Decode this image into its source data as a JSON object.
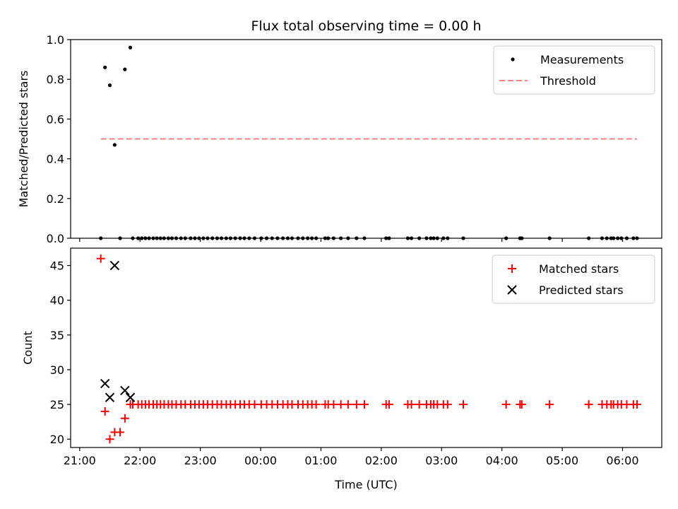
{
  "chart_data": [
    {
      "type": "scatter",
      "title": "Flux total observing time = 0.00 h",
      "xlabel": "",
      "ylabel": "Matched/Predicted stars",
      "ylim": [
        0.0,
        1.0
      ],
      "xlim": [
        -0.15,
        9.65
      ],
      "yticks": [
        0.0,
        0.2,
        0.4,
        0.6,
        0.8,
        1.0
      ],
      "ytick_labels": [
        "0.0",
        "0.2",
        "0.4",
        "0.6",
        "0.8",
        "1.0"
      ],
      "legend": {
        "placement": "top-right",
        "entries": [
          "Measurements",
          "Threshold"
        ]
      },
      "series": [
        {
          "name": "Measurements",
          "kind": "points",
          "color": "#000000",
          "x": [
            0.35,
            0.42,
            0.5,
            0.58,
            0.67,
            0.75,
            0.84,
            0.88,
            0.97,
            1.03,
            1.09,
            1.15,
            1.22,
            1.28,
            1.34,
            1.4,
            1.47,
            1.53,
            1.6,
            1.68,
            1.75,
            1.84,
            1.91,
            1.98,
            2.05,
            2.12,
            2.2,
            2.28,
            2.35,
            2.43,
            2.5,
            2.58,
            2.66,
            2.73,
            2.81,
            2.9,
            3.01,
            3.1,
            3.19,
            3.28,
            3.37,
            3.45,
            3.52,
            3.62,
            3.7,
            3.78,
            3.85,
            3.92,
            4.07,
            4.12,
            4.21,
            4.33,
            4.45,
            4.59,
            4.72,
            5.08,
            5.13,
            5.44,
            5.5,
            5.63,
            5.75,
            5.82,
            5.87,
            5.93,
            6.03,
            6.1,
            6.36,
            7.07,
            7.3,
            7.33,
            7.79,
            8.44,
            8.66,
            8.74,
            8.81,
            8.85,
            8.92,
            8.98,
            9.07,
            9.18,
            9.24
          ],
          "y": [
            0.0,
            0.86,
            0.77,
            0.47,
            0.0,
            0.85,
            0.96,
            0.0,
            0.0,
            0.0,
            0.0,
            0.0,
            0.0,
            0.0,
            0.0,
            0.0,
            0.0,
            0.0,
            0.0,
            0.0,
            0.0,
            0.0,
            0.0,
            0.0,
            0.0,
            0.0,
            0.0,
            0.0,
            0.0,
            0.0,
            0.0,
            0.0,
            0.0,
            0.0,
            0.0,
            0.0,
            0.0,
            0.0,
            0.0,
            0.0,
            0.0,
            0.0,
            0.0,
            0.0,
            0.0,
            0.0,
            0.0,
            0.0,
            0.0,
            0.0,
            0.0,
            0.0,
            0.0,
            0.0,
            0.0,
            0.0,
            0.0,
            0.0,
            0.0,
            0.0,
            0.0,
            0.0,
            0.0,
            0.0,
            0.0,
            0.0,
            0.0,
            0.0,
            0.0,
            0.0,
            0.0,
            0.0,
            0.0,
            0.0,
            0.0,
            0.0,
            0.0,
            0.0,
            0.0,
            0.0,
            0.0
          ]
        },
        {
          "name": "Threshold",
          "kind": "dashed-line",
          "color": "#ff7f7f",
          "x": [
            0.35,
            9.24
          ],
          "y": [
            0.5,
            0.5
          ]
        }
      ]
    },
    {
      "type": "scatter",
      "title": "",
      "xlabel": "Time (UTC)",
      "ylabel": "Count",
      "ylim": [
        18.8,
        47.5
      ],
      "xlim": [
        -0.15,
        9.65
      ],
      "yticks": [
        20,
        25,
        30,
        35,
        40,
        45
      ],
      "ytick_labels": [
        "20",
        "25",
        "30",
        "35",
        "40",
        "45"
      ],
      "xticks": [
        0,
        1,
        2,
        3,
        4,
        5,
        6,
        7,
        8,
        9
      ],
      "xtick_labels": [
        "21:00",
        "22:00",
        "23:00",
        "00:00",
        "01:00",
        "02:00",
        "03:00",
        "04:00",
        "05:00",
        "06:00"
      ],
      "legend": {
        "placement": "top-right",
        "entries": [
          "Matched stars",
          "Predicted stars"
        ]
      },
      "series": [
        {
          "name": "Matched stars",
          "kind": "plus",
          "color": "#ff0000",
          "x": [
            0.35,
            0.42,
            0.5,
            0.58,
            0.67,
            0.75,
            0.84,
            0.88,
            0.97,
            1.03,
            1.09,
            1.15,
            1.22,
            1.28,
            1.34,
            1.4,
            1.47,
            1.53,
            1.6,
            1.68,
            1.75,
            1.84,
            1.91,
            1.98,
            2.05,
            2.12,
            2.2,
            2.28,
            2.35,
            2.43,
            2.5,
            2.58,
            2.66,
            2.73,
            2.81,
            2.9,
            3.01,
            3.1,
            3.19,
            3.28,
            3.37,
            3.45,
            3.52,
            3.62,
            3.7,
            3.78,
            3.85,
            3.92,
            4.07,
            4.12,
            4.21,
            4.33,
            4.45,
            4.59,
            4.72,
            5.08,
            5.13,
            5.44,
            5.5,
            5.63,
            5.75,
            5.82,
            5.87,
            5.93,
            6.03,
            6.1,
            6.36,
            7.07,
            7.3,
            7.33,
            7.79,
            8.44,
            8.66,
            8.74,
            8.81,
            8.85,
            8.92,
            8.98,
            9.07,
            9.18,
            9.24
          ],
          "y": [
            46,
            24,
            20,
            21,
            21,
            23,
            25,
            25,
            25,
            25,
            25,
            25,
            25,
            25,
            25,
            25,
            25,
            25,
            25,
            25,
            25,
            25,
            25,
            25,
            25,
            25,
            25,
            25,
            25,
            25,
            25,
            25,
            25,
            25,
            25,
            25,
            25,
            25,
            25,
            25,
            25,
            25,
            25,
            25,
            25,
            25,
            25,
            25,
            25,
            25,
            25,
            25,
            25,
            25,
            25,
            25,
            25,
            25,
            25,
            25,
            25,
            25,
            25,
            25,
            25,
            25,
            25,
            25,
            25,
            25,
            25,
            25,
            25,
            25,
            25,
            25,
            25,
            25,
            25,
            25,
            25
          ]
        },
        {
          "name": "Predicted stars",
          "kind": "x",
          "color": "#000000",
          "x": [
            0.42,
            0.5,
            0.58,
            0.75,
            0.84
          ],
          "y": [
            28,
            26,
            45,
            27,
            26
          ]
        }
      ]
    }
  ]
}
